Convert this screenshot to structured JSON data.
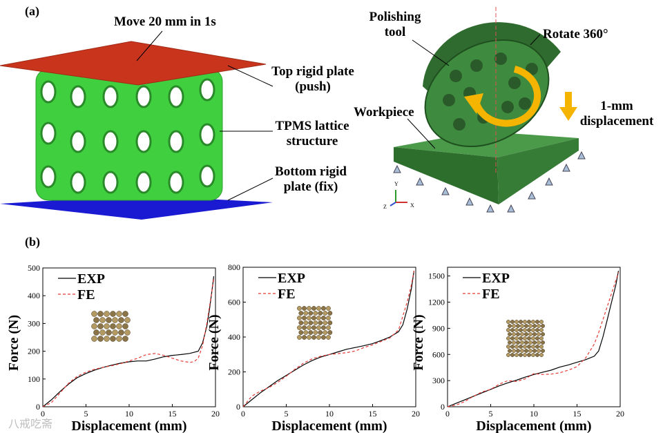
{
  "panel_a": {
    "tag": "(a)",
    "move_label": "Move 20 mm in 1s",
    "top_plate_line1": "Top rigid plate",
    "top_plate_line2": "(push)",
    "tpms_line1": "TPMS lattice",
    "tpms_line2": "structure",
    "bottom_plate_line1": "Bottom rigid",
    "bottom_plate_line2": "plate (fix)",
    "polishing_line1": "Polishing",
    "polishing_line2": "tool",
    "rotate_label": "Rotate 360°",
    "displacement_line1": "1-mm",
    "displacement_line2": "displacement",
    "workpiece_label": "Workpiece",
    "triad": {
      "y": "Y",
      "z": "Z",
      "x": "X"
    },
    "colors": {
      "top_plate": "#c8341c",
      "bottom_plate": "#1a1ad2",
      "lattice": "#3fcf3f",
      "tool": "#2f6b2f",
      "workpiece": "#3a8a3a",
      "arrow": "#f5b400"
    }
  },
  "panel_b": {
    "tag": "(b)"
  },
  "watermark": "八戒吃斋",
  "chart_data": [
    {
      "type": "line",
      "xlabel": "Displacement (mm)",
      "ylabel": "Force (N)",
      "xlim": [
        0,
        20
      ],
      "ylim": [
        0,
        500
      ],
      "xticks": [
        0,
        5,
        10,
        15,
        20
      ],
      "yticks": [
        0,
        100,
        200,
        300,
        400,
        500
      ],
      "series": [
        {
          "name": "EXP",
          "style": "solid",
          "color": "#000000",
          "x": [
            0,
            1,
            2,
            3,
            4,
            5,
            6,
            7,
            8,
            9,
            10,
            11,
            12,
            13,
            14,
            15,
            16,
            17,
            18,
            18.5,
            19,
            19.3,
            19.6,
            19.8
          ],
          "y": [
            0,
            25,
            55,
            82,
            105,
            120,
            132,
            142,
            150,
            157,
            162,
            165,
            165,
            172,
            180,
            185,
            188,
            192,
            200,
            230,
            290,
            350,
            420,
            470
          ]
        },
        {
          "name": "FE",
          "style": "dashed",
          "color": "#e53935",
          "x": [
            0,
            1,
            2,
            3,
            4,
            5,
            6,
            7,
            8,
            9,
            10,
            11,
            12,
            13,
            14,
            15,
            16,
            17,
            17.5,
            18,
            18.5,
            19,
            19.5,
            19.8
          ],
          "y": [
            0,
            15,
            50,
            85,
            110,
            125,
            135,
            142,
            148,
            155,
            165,
            175,
            188,
            192,
            185,
            175,
            165,
            160,
            162,
            175,
            220,
            300,
            400,
            460
          ]
        }
      ]
    },
    {
      "type": "line",
      "xlabel": "Displacement (mm)",
      "ylabel": "Force (N)",
      "xlim": [
        0,
        20
      ],
      "ylim": [
        0,
        800
      ],
      "xticks": [
        0,
        5,
        10,
        15,
        20
      ],
      "yticks": [
        0,
        200,
        400,
        600,
        800
      ],
      "series": [
        {
          "name": "EXP",
          "style": "solid",
          "color": "#000000",
          "x": [
            0,
            1,
            2,
            3,
            4,
            5,
            6,
            7,
            8,
            9,
            10,
            11,
            12,
            13,
            14,
            15,
            16,
            17,
            18,
            18.5,
            19,
            19.5,
            19.8
          ],
          "y": [
            0,
            40,
            80,
            115,
            150,
            180,
            210,
            240,
            265,
            285,
            300,
            315,
            330,
            340,
            350,
            362,
            380,
            400,
            430,
            470,
            560,
            680,
            780
          ]
        },
        {
          "name": "FE",
          "style": "dashed",
          "color": "#e53935",
          "x": [
            0,
            1,
            2,
            3,
            4,
            5,
            6,
            7,
            8,
            9,
            10,
            11,
            12,
            13,
            14,
            15,
            16,
            17,
            18,
            18.5,
            19,
            19.5,
            19.8
          ],
          "y": [
            0,
            60,
            90,
            110,
            140,
            175,
            215,
            250,
            275,
            290,
            300,
            305,
            310,
            320,
            340,
            355,
            375,
            395,
            440,
            520,
            600,
            700,
            780
          ]
        }
      ]
    },
    {
      "type": "line",
      "xlabel": "Displacement (mm)",
      "ylabel": "Force (N)",
      "xlim": [
        0,
        20
      ],
      "ylim": [
        0,
        1600
      ],
      "xticks": [
        0,
        5,
        10,
        15,
        20
      ],
      "yticks": [
        0,
        300,
        600,
        900,
        1200,
        1500
      ],
      "series": [
        {
          "name": "EXP",
          "style": "solid",
          "color": "#000000",
          "x": [
            0,
            1,
            2,
            3,
            4,
            5,
            6,
            7,
            8,
            9,
            10,
            11,
            12,
            13,
            14,
            15,
            16,
            17,
            17.5,
            18,
            18.5,
            19,
            19.5,
            19.8
          ],
          "y": [
            0,
            40,
            80,
            120,
            160,
            200,
            240,
            275,
            305,
            340,
            370,
            395,
            420,
            455,
            480,
            510,
            540,
            580,
            640,
            800,
            1000,
            1200,
            1400,
            1560
          ]
        },
        {
          "name": "FE",
          "style": "dashed",
          "color": "#e53935",
          "x": [
            0,
            1,
            2,
            3,
            4,
            5,
            6,
            7,
            8,
            9,
            10,
            11,
            12,
            13,
            14,
            15,
            16,
            17,
            17.5,
            18,
            18.5,
            19,
            19.5,
            19.8
          ],
          "y": [
            0,
            20,
            60,
            120,
            170,
            200,
            260,
            300,
            290,
            320,
            380,
            370,
            375,
            390,
            420,
            460,
            560,
            720,
            850,
            1000,
            1150,
            1300,
            1450,
            1540
          ]
        }
      ]
    }
  ]
}
